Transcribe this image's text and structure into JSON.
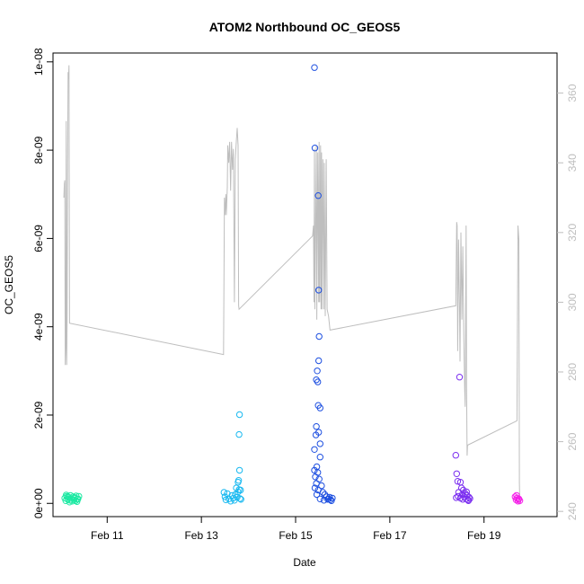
{
  "chart_data": {
    "type": "scatter",
    "title": "ATOM2 Northbound OC_GEOS5",
    "xlabel": "Date",
    "ylabel": "OC_GEOS5",
    "xlim": [
      9.85,
      20.55
    ],
    "ylim": [
      -3e-10,
      1.02e-08
    ],
    "y2lim": [
      238.5,
      371.5
    ],
    "x_ticks": [
      {
        "value": 11,
        "label": "Feb 11"
      },
      {
        "value": 13,
        "label": "Feb 13"
      },
      {
        "value": 15,
        "label": "Feb 15"
      },
      {
        "value": 17,
        "label": "Feb 17"
      },
      {
        "value": 19,
        "label": "Feb 19"
      }
    ],
    "y_ticks": [
      {
        "value": 0,
        "label": "0e+00"
      },
      {
        "value": 2e-09,
        "label": "2e-09"
      },
      {
        "value": 4e-09,
        "label": "4e-09"
      },
      {
        "value": 6e-09,
        "label": "6e-09"
      },
      {
        "value": 8e-09,
        "label": "8e-09"
      },
      {
        "value": 1e-08,
        "label": "1e-08"
      }
    ],
    "y2_ticks": [
      {
        "value": 240,
        "label": "240"
      },
      {
        "value": 260,
        "label": "260"
      },
      {
        "value": 280,
        "label": "280"
      },
      {
        "value": 300,
        "label": "300"
      },
      {
        "value": 320,
        "label": "320"
      },
      {
        "value": 340,
        "label": "340"
      },
      {
        "value": 360,
        "label": "360"
      }
    ],
    "colors": {
      "flight1": "#1de9a3",
      "flight2": "#19b9f0",
      "flight3": "#1d4fe0",
      "flight4": "#7a2df0",
      "flight5": "#f51ee8",
      "line": "#bebebe"
    },
    "series": [
      {
        "color_key": "flight1",
        "points": [
          [
            10.1,
            1.2e-10
          ],
          [
            10.12,
            6e-11
          ],
          [
            10.14,
            1.6e-10
          ],
          [
            10.16,
            9e-11
          ],
          [
            10.18,
            1.4e-10
          ],
          [
            10.2,
            3e-11
          ],
          [
            10.22,
            1.8e-10
          ],
          [
            10.24,
            1.1e-10
          ],
          [
            10.26,
            5e-11
          ],
          [
            10.28,
            1.5e-10
          ],
          [
            10.3,
            8e-11
          ],
          [
            10.32,
            1.3e-10
          ],
          [
            10.34,
            1.7e-10
          ],
          [
            10.36,
            4e-11
          ],
          [
            10.38,
            1e-10
          ],
          [
            10.4,
            1.6e-10
          ],
          [
            10.13,
            1.9e-10
          ],
          [
            10.21,
            7e-11
          ],
          [
            10.29,
            1.2e-10
          ],
          [
            10.37,
            9e-11
          ],
          [
            10.17,
            1.5e-10
          ],
          [
            10.33,
            6e-11
          ]
        ]
      },
      {
        "color_key": "flight2",
        "points": [
          [
            13.48,
            2.5e-10
          ],
          [
            13.5,
            1.5e-10
          ],
          [
            13.52,
            8e-11
          ],
          [
            13.55,
            2.2e-10
          ],
          [
            13.58,
            1e-10
          ],
          [
            13.62,
            5e-11
          ],
          [
            13.65,
            1.8e-10
          ],
          [
            13.68,
            1.2e-10
          ],
          [
            13.7,
            7e-11
          ],
          [
            13.72,
            2e-10
          ],
          [
            13.74,
            3.5e-10
          ],
          [
            13.76,
            1.4e-10
          ],
          [
            13.78,
            2.6e-10
          ],
          [
            13.8,
            3.1e-10
          ],
          [
            13.82,
            1.1e-10
          ],
          [
            13.84,
            9e-11
          ],
          [
            13.78,
            4.8e-10
          ],
          [
            13.81,
            7.5e-10
          ],
          [
            13.8,
            1.56e-09
          ],
          [
            13.81,
            2.01e-09
          ],
          [
            13.79,
            5.2e-10
          ],
          [
            13.83,
            3e-10
          ]
        ]
      },
      {
        "color_key": "flight3",
        "points": [
          [
            15.4,
            9.87e-09
          ],
          [
            15.41,
            8.05e-09
          ],
          [
            15.48,
            6.97e-09
          ],
          [
            15.49,
            4.83e-09
          ],
          [
            15.5,
            3.78e-09
          ],
          [
            15.49,
            3.23e-09
          ],
          [
            15.46,
            3e-09
          ],
          [
            15.44,
            2.8e-09
          ],
          [
            15.47,
            2.75e-09
          ],
          [
            15.48,
            2.22e-09
          ],
          [
            15.52,
            2.16e-09
          ],
          [
            15.44,
            1.74e-09
          ],
          [
            15.49,
            1.61e-09
          ],
          [
            15.43,
            1.55e-09
          ],
          [
            15.52,
            1.35e-09
          ],
          [
            15.4,
            1.22e-09
          ],
          [
            15.52,
            1.05e-09
          ],
          [
            15.45,
            8.3e-10
          ],
          [
            15.4,
            7.5e-10
          ],
          [
            15.47,
            7e-10
          ],
          [
            15.42,
            6e-10
          ],
          [
            15.5,
            5.5e-10
          ],
          [
            15.44,
            4.5e-10
          ],
          [
            15.55,
            4e-10
          ],
          [
            15.41,
            3.5e-10
          ],
          [
            15.48,
            3e-10
          ],
          [
            15.58,
            2.5e-10
          ],
          [
            15.62,
            2e-10
          ],
          [
            15.66,
            1.5e-10
          ],
          [
            15.7,
            1e-10
          ],
          [
            15.74,
            8e-11
          ],
          [
            15.78,
            1.2e-10
          ],
          [
            15.45,
            2e-10
          ],
          [
            15.52,
            1e-10
          ],
          [
            15.6,
            7e-11
          ],
          [
            15.68,
            9e-11
          ],
          [
            15.72,
            1.4e-10
          ],
          [
            15.76,
            6e-11
          ]
        ]
      },
      {
        "color_key": "flight4",
        "points": [
          [
            18.4,
            1.09e-09
          ],
          [
            18.42,
            6.7e-10
          ],
          [
            18.44,
            5e-10
          ],
          [
            18.48,
            2.86e-09
          ],
          [
            18.5,
            4.8e-10
          ],
          [
            18.52,
            3.5e-10
          ],
          [
            18.46,
            2.5e-10
          ],
          [
            18.54,
            2e-10
          ],
          [
            18.56,
            3e-10
          ],
          [
            18.58,
            1.5e-10
          ],
          [
            18.6,
            2.2e-10
          ],
          [
            18.62,
            1e-10
          ],
          [
            18.64,
            1.8e-10
          ],
          [
            18.66,
            8e-11
          ],
          [
            18.68,
            1.4e-10
          ],
          [
            18.7,
            1.1e-10
          ],
          [
            18.45,
            1.6e-10
          ],
          [
            18.5,
            1.2e-10
          ],
          [
            18.55,
            9e-11
          ],
          [
            18.63,
            2.6e-10
          ],
          [
            18.41,
            1.3e-10
          ],
          [
            18.67,
            6e-11
          ]
        ]
      },
      {
        "color_key": "flight5",
        "points": [
          [
            19.66,
            1.5e-10
          ],
          [
            19.68,
            8e-11
          ],
          [
            19.7,
            1.2e-10
          ],
          [
            19.72,
            5e-11
          ],
          [
            19.74,
            1e-10
          ],
          [
            19.76,
            6e-11
          ],
          [
            19.69,
            1.8e-10
          ],
          [
            19.73,
            9e-11
          ]
        ]
      }
    ],
    "line_series": {
      "axis": "right",
      "color_key": "line",
      "points": [
        [
          10.08,
          330
        ],
        [
          10.09,
          334
        ],
        [
          10.1,
          335
        ],
        [
          10.11,
          282
        ],
        [
          10.12,
          287
        ],
        [
          10.13,
          352
        ],
        [
          10.14,
          282
        ],
        [
          10.15,
          296
        ],
        [
          10.16,
          340
        ],
        [
          10.17,
          366
        ],
        [
          10.18,
          364
        ],
        [
          10.19,
          368
        ],
        [
          10.2,
          294
        ],
        [
          13.47,
          285
        ],
        [
          13.49,
          330
        ],
        [
          13.5,
          325
        ],
        [
          13.52,
          331
        ],
        [
          13.53,
          325
        ],
        [
          13.55,
          333
        ],
        [
          13.56,
          345
        ],
        [
          13.58,
          340
        ],
        [
          13.6,
          346
        ],
        [
          13.62,
          332
        ],
        [
          13.64,
          346
        ],
        [
          13.66,
          338
        ],
        [
          13.68,
          344
        ],
        [
          13.7,
          300
        ],
        [
          13.72,
          341
        ],
        [
          13.74,
          346
        ],
        [
          13.76,
          350
        ],
        [
          13.78,
          345
        ],
        [
          13.79,
          299
        ],
        [
          13.8,
          298
        ],
        [
          15.36,
          319
        ],
        [
          15.38,
          322
        ],
        [
          15.39,
          300
        ],
        [
          15.4,
          344
        ],
        [
          15.41,
          298
        ],
        [
          15.43,
          330
        ],
        [
          15.44,
          345
        ],
        [
          15.45,
          295
        ],
        [
          15.47,
          343
        ],
        [
          15.49,
          300
        ],
        [
          15.5,
          346
        ],
        [
          15.51,
          300
        ],
        [
          15.53,
          345
        ],
        [
          15.54,
          298
        ],
        [
          15.55,
          343
        ],
        [
          15.56,
          298
        ],
        [
          15.58,
          341
        ],
        [
          15.6,
          298
        ],
        [
          15.61,
          340
        ],
        [
          15.63,
          296
        ],
        [
          15.65,
          341
        ],
        [
          15.67,
          298
        ],
        [
          15.7,
          296
        ],
        [
          15.73,
          292
        ],
        [
          18.4,
          299
        ],
        [
          18.42,
          323
        ],
        [
          18.43,
          322
        ],
        [
          18.44,
          286
        ],
        [
          18.46,
          318
        ],
        [
          18.48,
          297
        ],
        [
          18.49,
          283
        ],
        [
          18.51,
          320
        ],
        [
          18.53,
          295
        ],
        [
          18.55,
          316
        ],
        [
          18.57,
          290
        ],
        [
          18.59,
          275
        ],
        [
          18.6,
          270
        ],
        [
          18.62,
          322
        ],
        [
          18.63,
          276
        ],
        [
          18.64,
          256
        ],
        [
          18.65,
          259
        ],
        [
          19.7,
          266
        ],
        [
          19.72,
          322
        ],
        [
          19.74,
          318
        ],
        [
          19.75,
          248
        ],
        [
          19.76,
          242
        ]
      ]
    }
  }
}
